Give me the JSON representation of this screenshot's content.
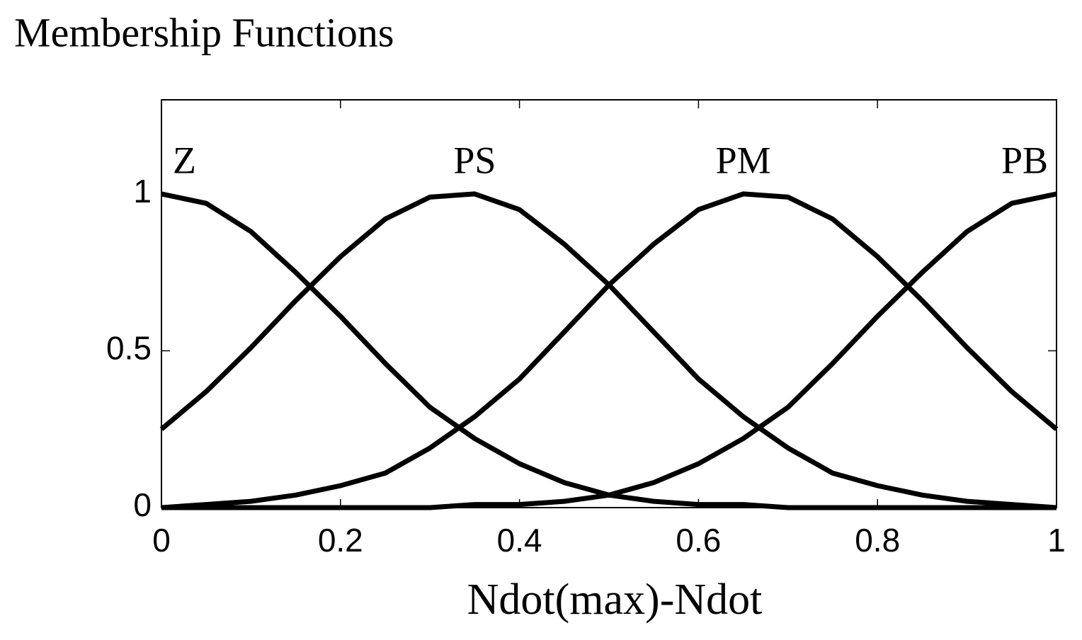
{
  "chart_data": {
    "type": "line",
    "title": "Membership Functions",
    "xlabel": "Ndot(max)-Ndot",
    "x": [
      0,
      0.05,
      0.1,
      0.15,
      0.2,
      0.25,
      0.3,
      0.35,
      0.4,
      0.45,
      0.5,
      0.55,
      0.6,
      0.65,
      0.7,
      0.75,
      0.8,
      0.85,
      0.9,
      0.95,
      1
    ],
    "series": [
      {
        "name": "Z",
        "color": "#000000",
        "values": [
          1,
          0.97,
          0.88,
          0.75,
          0.61,
          0.46,
          0.32,
          0.22,
          0.14,
          0.08,
          0.04,
          0.02,
          0.01,
          0.01,
          0,
          0,
          0,
          0,
          0,
          0,
          0
        ]
      },
      {
        "name": "PS",
        "color": "#000000",
        "values": [
          0.25,
          0.37,
          0.51,
          0.66,
          0.8,
          0.92,
          0.99,
          1,
          0.95,
          0.84,
          0.71,
          0.56,
          0.41,
          0.29,
          0.19,
          0.11,
          0.07,
          0.04,
          0.02,
          0.01,
          0
        ]
      },
      {
        "name": "PM",
        "color": "#000000",
        "values": [
          0,
          0.01,
          0.02,
          0.04,
          0.07,
          0.11,
          0.19,
          0.29,
          0.41,
          0.56,
          0.71,
          0.84,
          0.95,
          1,
          0.99,
          0.92,
          0.8,
          0.66,
          0.51,
          0.37,
          0.25
        ]
      },
      {
        "name": "PB",
        "color": "#000000",
        "values": [
          0,
          0,
          0,
          0,
          0,
          0,
          0,
          0.01,
          0.01,
          0.02,
          0.04,
          0.08,
          0.14,
          0.22,
          0.32,
          0.46,
          0.61,
          0.75,
          0.88,
          0.97,
          1
        ]
      }
    ],
    "xlim": [
      0,
      1
    ],
    "xticks": [
      0,
      0.2,
      0.4,
      0.6,
      0.8,
      1
    ],
    "ylim": [
      0,
      1.3
    ],
    "yticks": [
      0,
      0.5,
      1
    ]
  }
}
